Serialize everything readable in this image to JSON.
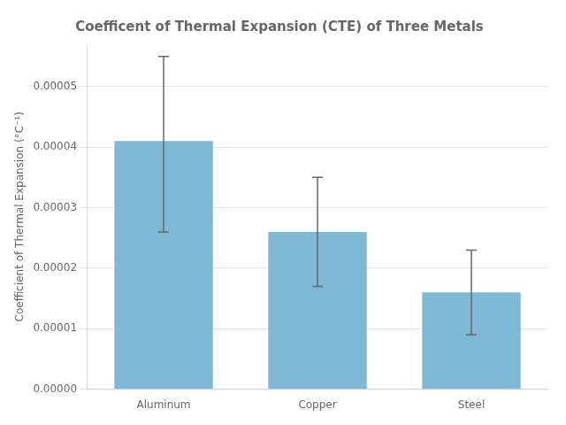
{
  "chart_data": {
    "type": "bar",
    "title": "Coefficent of Thermal Expansion (CTE) of Three Metals",
    "categories": [
      "Aluminum",
      "Copper",
      "Steel"
    ],
    "values": [
      4.1e-05,
      2.6e-05,
      1.6e-05
    ],
    "errors_upper": [
      1.4e-05,
      9e-06,
      7e-06
    ],
    "errors_lower": [
      1.5e-05,
      9e-06,
      7e-06
    ],
    "color": "#7EB8D4",
    "ylabel": "Coefficient of Thermal Expansion (°C⁻¹)",
    "ylim": [
      0,
      5.7e-05
    ],
    "yticks": [
      {
        "value": 0,
        "label": "0.00000"
      },
      {
        "value": 1e-05,
        "label": "0.00001"
      },
      {
        "value": 2e-05,
        "label": "0.00002"
      },
      {
        "value": 3e-05,
        "label": "0.00003"
      },
      {
        "value": 4e-05,
        "label": "0.00004"
      },
      {
        "value": 5e-05,
        "label": "0.00005"
      }
    ],
    "grid": true
  }
}
